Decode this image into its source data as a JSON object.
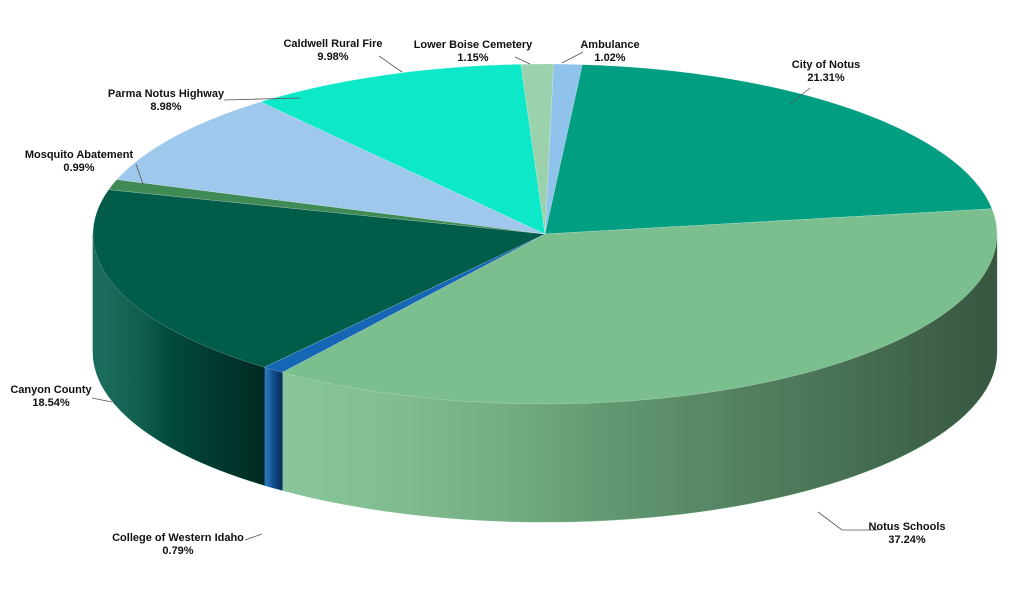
{
  "chart_data": {
    "type": "pie",
    "style": "3d",
    "title": "",
    "slices": [
      {
        "label": "Ambulance",
        "value": 1.02,
        "display": "1.02%",
        "color": "#8fc3ec"
      },
      {
        "label": "City of Notus",
        "value": 21.31,
        "display": "21.31%",
        "color": "#019e81"
      },
      {
        "label": "Notus Schools",
        "value": 37.24,
        "display": "37.24%",
        "color": "#7bbf8e"
      },
      {
        "label": "College of Western Idaho",
        "value": 0.79,
        "display": "0.79%",
        "color": "#1566b5"
      },
      {
        "label": "Canyon County",
        "value": 18.54,
        "display": "18.54%",
        "color": "#015c4a"
      },
      {
        "label": "Mosquito Abatement",
        "value": 0.99,
        "display": "0.99%",
        "color": "#3f8a55"
      },
      {
        "label": "Parma Notus Highway",
        "value": 8.98,
        "display": "8.98%",
        "color": "#9ec8ec"
      },
      {
        "label": "Caldwell Rural Fire",
        "value": 9.98,
        "display": "9.98%",
        "color": "#0de9c8"
      },
      {
        "label": "Lower Boise Cemetery",
        "value": 1.15,
        "display": "1.15%",
        "color": "#9bd1ad"
      }
    ]
  }
}
